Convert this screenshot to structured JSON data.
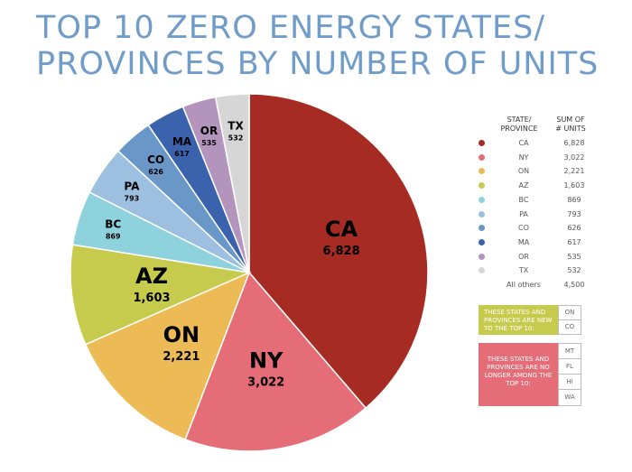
{
  "title_line1": "TOP 10 ZERO ENERGY STATES/",
  "title_line2": "PROVINCES BY NUMBER OF UNITS",
  "chart_data": {
    "type": "pie",
    "slices": [
      {
        "label": "CA",
        "value": 6828,
        "value_label": "6,828",
        "color": "#a62b22",
        "label_color": "#000000",
        "big": true
      },
      {
        "label": "NY",
        "value": 3022,
        "value_label": "3,022",
        "color": "#e56d78",
        "label_color": "#000000",
        "big": true
      },
      {
        "label": "ON",
        "value": 2221,
        "value_label": "2,221",
        "color": "#edbb55",
        "label_color": "#000000",
        "big": true
      },
      {
        "label": "AZ",
        "value": 1603,
        "value_label": "1,603",
        "color": "#c6ca4d",
        "label_color": "#000000",
        "big": true
      },
      {
        "label": "BC",
        "value": 869,
        "value_label": "869",
        "color": "#8dd2dc",
        "label_color": "#000000",
        "big": false
      },
      {
        "label": "PA",
        "value": 793,
        "value_label": "793",
        "color": "#9dbfe0",
        "label_color": "#000000",
        "big": false
      },
      {
        "label": "CO",
        "value": 626,
        "value_label": "626",
        "color": "#6997c8",
        "label_color": "#000000",
        "big": false
      },
      {
        "label": "MA",
        "value": 617,
        "value_label": "617",
        "color": "#3b63ad",
        "label_color": "#000000",
        "big": false
      },
      {
        "label": "OR",
        "value": 535,
        "value_label": "535",
        "color": "#b394bd",
        "label_color": "#000000",
        "big": false
      },
      {
        "label": "TX",
        "value": 532,
        "value_label": "532",
        "color": "#d6d6d6",
        "label_color": "#000000",
        "big": false
      }
    ]
  },
  "legend": {
    "col1_header": "STATE/\nPROVINCE",
    "col2_header": "SUM OF\n# UNITS",
    "rows": [
      {
        "name": "CA",
        "value": "6,828",
        "color": "#a62b22"
      },
      {
        "name": "NY",
        "value": "3,022",
        "color": "#e56d78"
      },
      {
        "name": "ON",
        "value": "2,221",
        "color": "#edbb55"
      },
      {
        "name": "AZ",
        "value": "1,603",
        "color": "#c6ca4d"
      },
      {
        "name": "BC",
        "value": "869",
        "color": "#8dd2dc"
      },
      {
        "name": "PA",
        "value": "793",
        "color": "#9dbfe0"
      },
      {
        "name": "CO",
        "value": "626",
        "color": "#6997c8"
      },
      {
        "name": "MA",
        "value": "617",
        "color": "#3b63ad"
      },
      {
        "name": "OR",
        "value": "535",
        "color": "#b394bd"
      },
      {
        "name": "TX",
        "value": "532",
        "color": "#d6d6d6"
      },
      {
        "name": "All others",
        "value": "4,500",
        "color": ""
      }
    ]
  },
  "new_box": {
    "text": "THESE STATES AND PROVINCES ARE NEW TO THE TOP 10:",
    "color": "#c6ca4d",
    "items": [
      "ON",
      "CO"
    ]
  },
  "gone_box": {
    "text": "THESE STATES AND PROVINCES ARE NO LONGER AMONG THE TOP 10:",
    "color": "#e56d78",
    "items": [
      "MT",
      "FL",
      "HI",
      "WA"
    ]
  }
}
